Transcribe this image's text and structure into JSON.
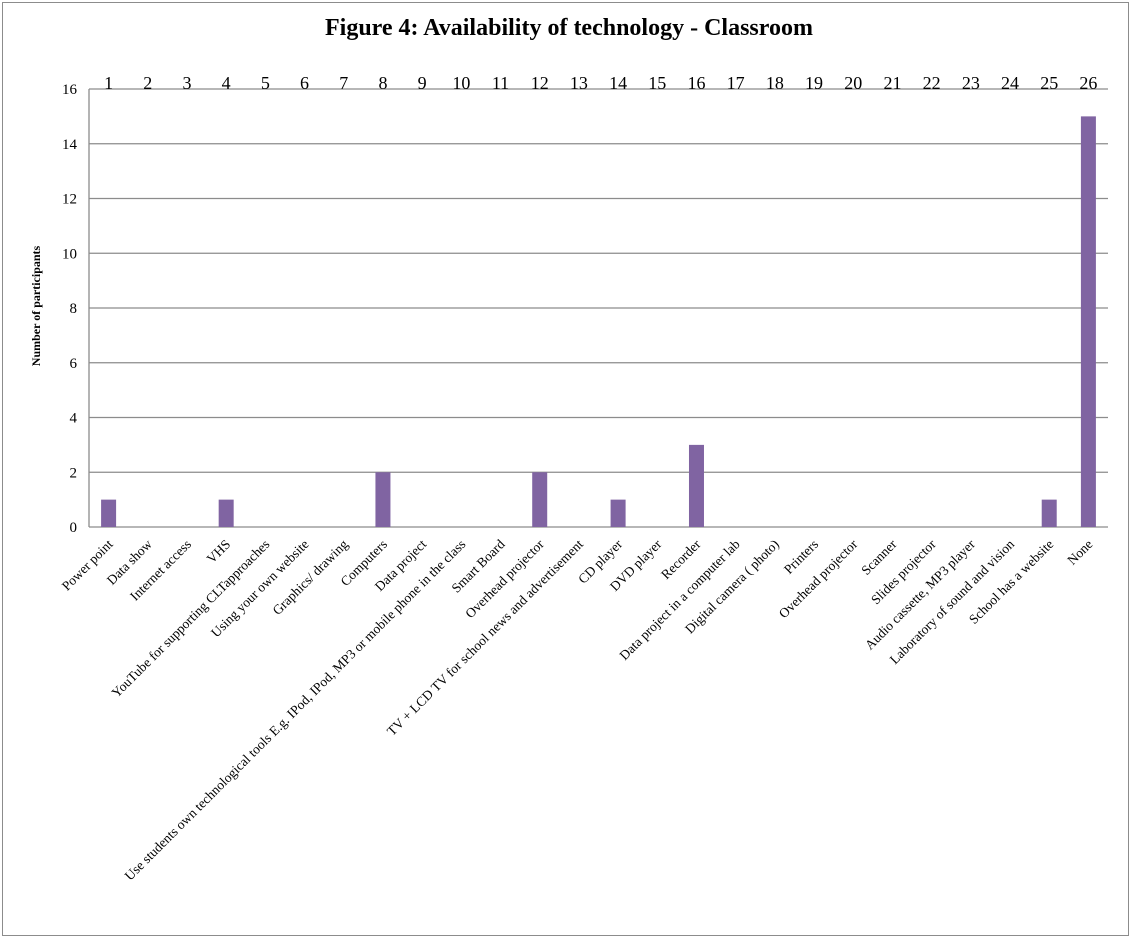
{
  "chart_data": {
    "type": "bar",
    "title": "Figure 4: Availability of technology - Classroom",
    "xlabel": "",
    "ylabel": "Number of participants",
    "ylim": [
      0,
      16
    ],
    "yticks": [
      0,
      2,
      4,
      6,
      8,
      10,
      12,
      14,
      16
    ],
    "grid": true,
    "legend": "none",
    "bar_color": "#8064A2",
    "top_labels": [
      "1",
      "2",
      "3",
      "4",
      "5",
      "6",
      "7",
      "8",
      "9",
      "10",
      "11",
      "12",
      "13",
      "14",
      "15",
      "16",
      "17",
      "18",
      "19",
      "20",
      "21",
      "22",
      "23",
      "24",
      "25",
      "26"
    ],
    "categories": [
      "Power point",
      "Data show",
      "Internet access",
      "VHS",
      "YouTube for supporting CLTapproaches",
      "Using your own website",
      "Graphics/ drawing",
      "Computers",
      "Data project",
      "Use students own technological tools E.g. IPod, IPod, MP3 or mobile phone in the class",
      "Smart Board",
      "Overhead projector",
      "TV + LCD TV for school news and advertisement",
      "CD player",
      "DVD player",
      "Recorder",
      "Data project in a computer lab",
      "Digital camera ( photo)",
      "Printers",
      "Overhead projector",
      "Scanner",
      "Slides projector",
      "Audio cassette, MP3 player",
      "Laboratory of sound and vision",
      "School has a website",
      "None"
    ],
    "values": [
      1,
      0,
      0,
      1,
      0,
      0,
      0,
      2,
      0,
      0,
      0,
      2,
      0,
      1,
      0,
      3,
      0,
      0,
      0,
      0,
      0,
      0,
      0,
      0,
      1,
      15
    ]
  }
}
